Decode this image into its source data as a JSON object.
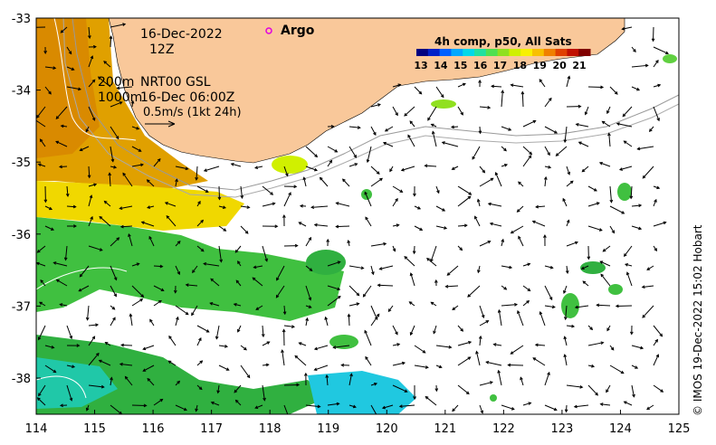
{
  "map": {
    "date_label": "16-Dec-2022",
    "time_label": "12Z",
    "argo_label": "Argo",
    "contours_label": "200m\n1000m",
    "velocity_source": "NRT00 GSL",
    "velocity_time": "16-Dec 06:00Z",
    "scale_label": "0.5m/s (1kt 24h)",
    "colorbar": {
      "title": "4h comp, p50, All Sats",
      "ticks": [
        "13",
        "14",
        "15",
        "16",
        "17",
        "18",
        "19",
        "20",
        "21"
      ],
      "colors": [
        "#000080",
        "#0020c8",
        "#0060ff",
        "#00a8ff",
        "#00d8e8",
        "#20e0a0",
        "#50e050",
        "#90e020",
        "#d0f000",
        "#f8f000",
        "#f8c000",
        "#f08000",
        "#e04000",
        "#c01000",
        "#800000"
      ]
    },
    "x_axis": {
      "ticks": [
        "114",
        "115",
        "116",
        "117",
        "118",
        "119",
        "120",
        "121",
        "122",
        "123",
        "124",
        "125"
      ],
      "range": [
        114,
        125
      ]
    },
    "y_axis": {
      "ticks": [
        "-33",
        "-34",
        "-35",
        "-36",
        "-37",
        "-38"
      ],
      "range": [
        -38.5,
        -33
      ]
    },
    "land_color": "#f9c89a",
    "credit": "© IMOS 19-Dec-2022 15:02 Hobart"
  }
}
